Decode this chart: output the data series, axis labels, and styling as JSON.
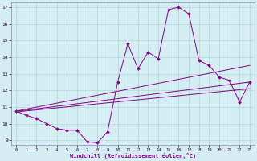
{
  "xlabel": "Windchill (Refroidissement éolien,°C)",
  "bg_color": "#d4eef4",
  "line_color": "#880088",
  "grid_color": "#b0d8d0",
  "xlim": [
    -0.5,
    23.5
  ],
  "ylim": [
    8.7,
    17.3
  ],
  "yticks": [
    9,
    10,
    11,
    12,
    13,
    14,
    15,
    16,
    17
  ],
  "xticks": [
    0,
    1,
    2,
    3,
    4,
    5,
    6,
    7,
    8,
    9,
    10,
    11,
    12,
    13,
    14,
    15,
    16,
    17,
    18,
    19,
    20,
    21,
    22,
    23
  ],
  "main_line": {
    "x": [
      0,
      1,
      2,
      3,
      4,
      5,
      6,
      7,
      8,
      9,
      10,
      11,
      12,
      13,
      14,
      15,
      16,
      17,
      18,
      19,
      20,
      21,
      22,
      23
    ],
    "y": [
      10.75,
      10.5,
      10.3,
      10.0,
      9.7,
      9.6,
      9.6,
      8.9,
      8.85,
      9.5,
      12.5,
      14.8,
      13.3,
      14.3,
      13.9,
      16.85,
      17.0,
      16.6,
      13.8,
      13.5,
      12.8,
      12.6,
      11.3,
      12.5
    ]
  },
  "straight_lines": [
    {
      "x": [
        0,
        23
      ],
      "y": [
        10.75,
        13.5
      ]
    },
    {
      "x": [
        0,
        23
      ],
      "y": [
        10.73,
        12.5
      ]
    },
    {
      "x": [
        0,
        23
      ],
      "y": [
        10.7,
        12.1
      ]
    }
  ]
}
